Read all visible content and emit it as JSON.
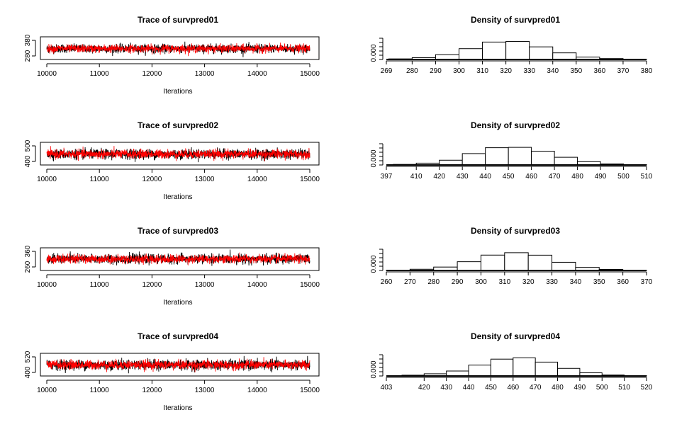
{
  "chart_data": [
    {
      "type": "line",
      "title": "Trace of survpred01",
      "xlabel": "Iterations",
      "xlim": [
        10000,
        15000
      ],
      "xticks": [
        "10000",
        "11000",
        "12000",
        "13000",
        "14000",
        "15000"
      ],
      "ylim": [
        260,
        390
      ],
      "yticks": [
        "280",
        "380"
      ],
      "series": [
        {
          "color": "#000000",
          "values": {
            "mean": 322,
            "sd": 14
          }
        },
        {
          "color": "#ff0000",
          "values": {
            "mean": 322,
            "sd": 13
          }
        }
      ]
    },
    {
      "type": "bar",
      "title": "Density of survpred01",
      "ylabel_tick": "0.000",
      "xticks": [
        "269",
        "280",
        "290",
        "300",
        "310",
        "320",
        "330",
        "340",
        "350",
        "360",
        "370",
        "380"
      ],
      "bins": [
        [
          270,
          280
        ],
        [
          280,
          290
        ],
        [
          290,
          300
        ],
        [
          300,
          310
        ],
        [
          310,
          320
        ],
        [
          320,
          330
        ],
        [
          330,
          340
        ],
        [
          340,
          350
        ],
        [
          350,
          360
        ],
        [
          360,
          370
        ],
        [
          370,
          380
        ]
      ],
      "values": [
        0.001,
        0.003,
        0.008,
        0.018,
        0.029,
        0.03,
        0.021,
        0.011,
        0.004,
        0.0015,
        0.0005
      ],
      "ymax": 0.033
    },
    {
      "type": "line",
      "title": "Trace of survpred02",
      "xlabel": "Iterations",
      "xlim": [
        10000,
        15000
      ],
      "xticks": [
        "10000",
        "11000",
        "12000",
        "13000",
        "14000",
        "15000"
      ],
      "ylim": [
        385,
        525
      ],
      "yticks": [
        "400",
        "500"
      ],
      "series": [
        {
          "color": "#000000",
          "values": {
            "mean": 452,
            "sd": 17
          }
        },
        {
          "color": "#ff0000",
          "values": {
            "mean": 452,
            "sd": 16
          }
        }
      ]
    },
    {
      "type": "bar",
      "title": "Density of survpred02",
      "ylabel_tick": "0.000",
      "xticks": [
        "397",
        "410",
        "420",
        "430",
        "440",
        "450",
        "460",
        "470",
        "480",
        "490",
        "500",
        "510"
      ],
      "bins": [
        [
          400,
          410
        ],
        [
          410,
          420
        ],
        [
          420,
          430
        ],
        [
          430,
          440
        ],
        [
          440,
          450
        ],
        [
          450,
          460
        ],
        [
          460,
          470
        ],
        [
          470,
          480
        ],
        [
          480,
          490
        ],
        [
          490,
          500
        ],
        [
          500,
          510
        ]
      ],
      "values": [
        0.0008,
        0.0025,
        0.0065,
        0.0155,
        0.0235,
        0.024,
        0.0188,
        0.0105,
        0.0045,
        0.0014,
        0.0005
      ],
      "ymax": 0.027
    },
    {
      "type": "line",
      "title": "Trace of survpred03",
      "xlabel": "Iterations",
      "xlim": [
        10000,
        15000
      ],
      "xticks": [
        "10000",
        "11000",
        "12000",
        "13000",
        "14000",
        "15000"
      ],
      "ylim": [
        255,
        375
      ],
      "yticks": [
        "260",
        "360"
      ],
      "series": [
        {
          "color": "#000000",
          "values": {
            "mean": 316,
            "sd": 14
          }
        },
        {
          "color": "#ff0000",
          "values": {
            "mean": 316,
            "sd": 13
          }
        }
      ]
    },
    {
      "type": "bar",
      "title": "Density of survpred03",
      "ylabel_tick": "0.000",
      "xticks": [
        "260",
        "270",
        "280",
        "290",
        "300",
        "310",
        "320",
        "330",
        "340",
        "350",
        "360",
        "370"
      ],
      "bins": [
        [
          260,
          270
        ],
        [
          270,
          280
        ],
        [
          280,
          290
        ],
        [
          290,
          300
        ],
        [
          300,
          310
        ],
        [
          310,
          320
        ],
        [
          320,
          330
        ],
        [
          330,
          340
        ],
        [
          340,
          350
        ],
        [
          350,
          360
        ],
        [
          360,
          370
        ]
      ],
      "values": [
        0.0004,
        0.0018,
        0.005,
        0.0128,
        0.0225,
        0.026,
        0.0224,
        0.012,
        0.0045,
        0.0015,
        0.0004
      ],
      "ymax": 0.029
    },
    {
      "type": "line",
      "title": "Trace of survpred04",
      "xlabel": "Iterations",
      "xlim": [
        10000,
        15000
      ],
      "xticks": [
        "10000",
        "11000",
        "12000",
        "13000",
        "14000",
        "15000"
      ],
      "ylim": [
        395,
        530
      ],
      "yticks": [
        "400",
        "520"
      ],
      "series": [
        {
          "color": "#000000",
          "values": {
            "mean": 461,
            "sd": 17
          }
        },
        {
          "color": "#ff0000",
          "values": {
            "mean": 461,
            "sd": 16
          }
        }
      ]
    },
    {
      "type": "bar",
      "title": "Density of survpred04",
      "ylabel_tick": "0.000",
      "xticks": [
        "403",
        "420",
        "430",
        "440",
        "450",
        "460",
        "470",
        "480",
        "490",
        "500",
        "510",
        "520"
      ],
      "bins": [
        [
          410,
          420
        ],
        [
          420,
          430
        ],
        [
          430,
          440
        ],
        [
          440,
          450
        ],
        [
          450,
          460
        ],
        [
          460,
          470
        ],
        [
          470,
          480
        ],
        [
          480,
          490
        ],
        [
          490,
          500
        ],
        [
          500,
          510
        ],
        [
          510,
          520
        ]
      ],
      "values": [
        0.0012,
        0.0033,
        0.0075,
        0.0165,
        0.0255,
        0.0275,
        0.021,
        0.0115,
        0.0048,
        0.0015,
        0.0005
      ],
      "ymax": 0.03
    }
  ]
}
